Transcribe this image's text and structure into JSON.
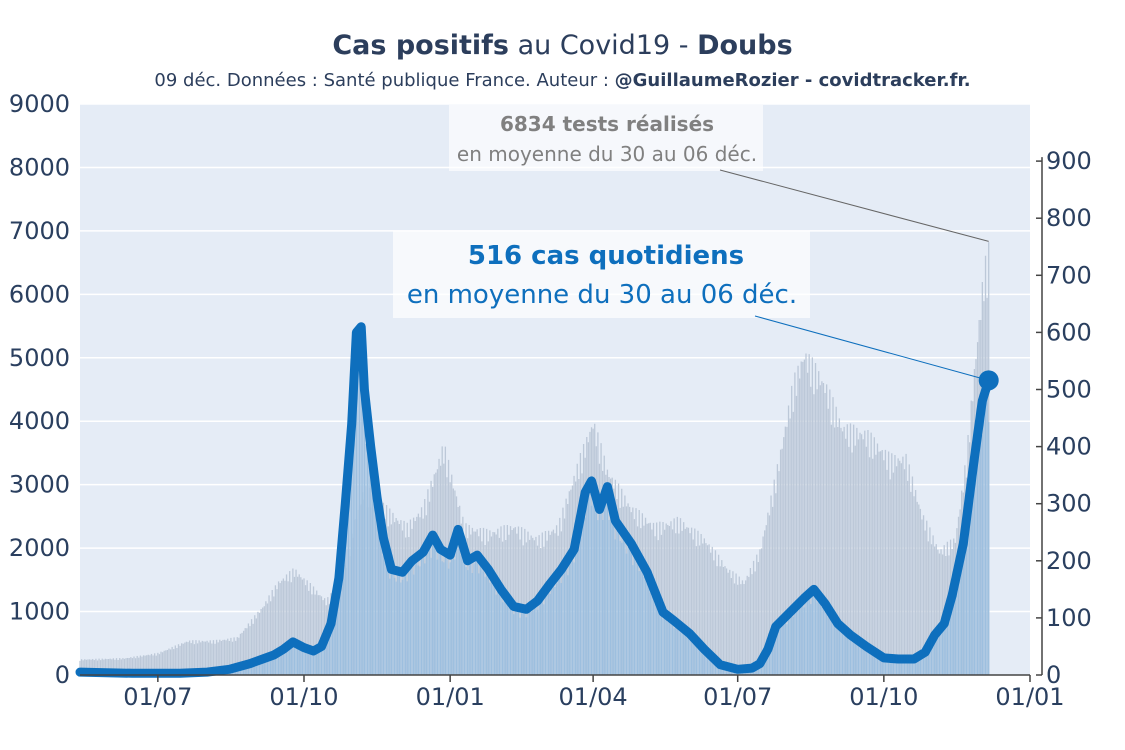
{
  "title": {
    "part1": "Cas positifs",
    "part2": " au Covid19 - ",
    "part3": "Doubs"
  },
  "subtitle": {
    "plain": "09 déc. Données : Santé publique France. Auteur : ",
    "bold": "@GuillaumeRozier - covidtracker.fr."
  },
  "colors": {
    "cases": "#0e6fbd",
    "cases_bars": "#9dbfdf",
    "tests_bars": "#bcc8d8",
    "plot_bg": "#e5ecf6",
    "grid": "#ffffff",
    "tests_annotation": "#808080"
  },
  "chart_data": {
    "type": "line",
    "x_range": [
      "2020-05-13",
      "2022-01-01"
    ],
    "y_left_range": [
      0,
      9000
    ],
    "y_right_range": [
      0,
      1000
    ],
    "y_left_ticks": [
      0,
      1000,
      2000,
      3000,
      4000,
      5000,
      6000,
      7000,
      8000,
      9000
    ],
    "y_right_ticks": [
      0,
      100,
      200,
      300,
      400,
      500,
      600,
      700,
      800,
      900
    ],
    "x_ticks": [
      {
        "date": "2020-07-01",
        "label": "01/07"
      },
      {
        "date": "2020-10-01",
        "label": "01/10"
      },
      {
        "date": "2021-01-01",
        "label": "01/01"
      },
      {
        "date": "2021-04-01",
        "label": "01/04"
      },
      {
        "date": "2021-07-01",
        "label": "01/07"
      },
      {
        "date": "2021-10-01",
        "label": "01/10"
      },
      {
        "date": "2022-01-01",
        "label": "01/01"
      }
    ],
    "grid": true,
    "series": [
      {
        "name": "tests",
        "axis": "left",
        "style": "bars",
        "points": [
          [
            "2020-05-13",
            250
          ],
          [
            "2020-06-10",
            270
          ],
          [
            "2020-07-01",
            350
          ],
          [
            "2020-07-20",
            550
          ],
          [
            "2020-08-05",
            550
          ],
          [
            "2020-08-20",
            600
          ],
          [
            "2020-09-05",
            1100
          ],
          [
            "2020-09-15",
            1500
          ],
          [
            "2020-09-25",
            1700
          ],
          [
            "2020-10-05",
            1450
          ],
          [
            "2020-10-15",
            1200
          ],
          [
            "2020-10-25",
            1500
          ],
          [
            "2020-11-03",
            2600
          ],
          [
            "2020-11-08",
            3000
          ],
          [
            "2020-11-14",
            2900
          ],
          [
            "2020-11-25",
            2600
          ],
          [
            "2020-12-05",
            2400
          ],
          [
            "2020-12-15",
            2700
          ],
          [
            "2020-12-28",
            3700
          ],
          [
            "2021-01-10",
            2400
          ],
          [
            "2021-01-25",
            2300
          ],
          [
            "2021-02-10",
            2400
          ],
          [
            "2021-02-25",
            2200
          ],
          [
            "2021-03-10",
            2400
          ],
          [
            "2021-03-20",
            3200
          ],
          [
            "2021-04-01",
            4100
          ],
          [
            "2021-04-10",
            3300
          ],
          [
            "2021-04-25",
            2700
          ],
          [
            "2021-05-10",
            2400
          ],
          [
            "2021-05-25",
            2500
          ],
          [
            "2021-06-10",
            2200
          ],
          [
            "2021-06-25",
            1700
          ],
          [
            "2021-07-05",
            1500
          ],
          [
            "2021-07-15",
            2000
          ],
          [
            "2021-07-25",
            3200
          ],
          [
            "2021-08-05",
            4700
          ],
          [
            "2021-08-12",
            5200
          ],
          [
            "2021-08-25",
            4700
          ],
          [
            "2021-09-05",
            4000
          ],
          [
            "2021-09-20",
            3900
          ],
          [
            "2021-10-05",
            3500
          ],
          [
            "2021-10-15",
            3500
          ],
          [
            "2021-10-25",
            2600
          ],
          [
            "2021-11-05",
            2000
          ],
          [
            "2021-11-15",
            2200
          ],
          [
            "2021-11-22",
            3500
          ],
          [
            "2021-11-28",
            5200
          ],
          [
            "2021-12-03",
            6500
          ],
          [
            "2021-12-06",
            6834
          ]
        ]
      },
      {
        "name": "cas",
        "axis": "right",
        "style": "line+bars",
        "points": [
          [
            "2020-05-13",
            5
          ],
          [
            "2020-06-15",
            3
          ],
          [
            "2020-07-15",
            3
          ],
          [
            "2020-08-01",
            5
          ],
          [
            "2020-08-15",
            10
          ],
          [
            "2020-08-28",
            20
          ],
          [
            "2020-09-05",
            28
          ],
          [
            "2020-09-12",
            35
          ],
          [
            "2020-09-18",
            45
          ],
          [
            "2020-09-24",
            58
          ],
          [
            "2020-10-01",
            48
          ],
          [
            "2020-10-07",
            42
          ],
          [
            "2020-10-12",
            50
          ],
          [
            "2020-10-18",
            90
          ],
          [
            "2020-10-23",
            170
          ],
          [
            "2020-10-27",
            300
          ],
          [
            "2020-10-31",
            440
          ],
          [
            "2020-11-03",
            600
          ],
          [
            "2020-11-06",
            610
          ],
          [
            "2020-11-08",
            500
          ],
          [
            "2020-11-12",
            400
          ],
          [
            "2020-11-16",
            310
          ],
          [
            "2020-11-20",
            240
          ],
          [
            "2020-11-25",
            185
          ],
          [
            "2020-12-02",
            180
          ],
          [
            "2020-12-08",
            200
          ],
          [
            "2020-12-15",
            215
          ],
          [
            "2020-12-21",
            245
          ],
          [
            "2020-12-26",
            220
          ],
          [
            "2021-01-01",
            210
          ],
          [
            "2021-01-06",
            255
          ],
          [
            "2021-01-12",
            200
          ],
          [
            "2021-01-18",
            210
          ],
          [
            "2021-01-25",
            185
          ],
          [
            "2021-02-02",
            150
          ],
          [
            "2021-02-10",
            120
          ],
          [
            "2021-02-18",
            115
          ],
          [
            "2021-02-25",
            130
          ],
          [
            "2021-03-05",
            160
          ],
          [
            "2021-03-12",
            185
          ],
          [
            "2021-03-20",
            220
          ],
          [
            "2021-03-27",
            320
          ],
          [
            "2021-03-31",
            340
          ],
          [
            "2021-04-05",
            290
          ],
          [
            "2021-04-10",
            330
          ],
          [
            "2021-04-15",
            270
          ],
          [
            "2021-04-25",
            230
          ],
          [
            "2021-05-05",
            180
          ],
          [
            "2021-05-15",
            110
          ],
          [
            "2021-05-22",
            95
          ],
          [
            "2021-06-01",
            72
          ],
          [
            "2021-06-10",
            45
          ],
          [
            "2021-06-20",
            18
          ],
          [
            "2021-07-01",
            10
          ],
          [
            "2021-07-10",
            12
          ],
          [
            "2021-07-15",
            20
          ],
          [
            "2021-07-20",
            45
          ],
          [
            "2021-07-25",
            85
          ],
          [
            "2021-08-03",
            110
          ],
          [
            "2021-08-12",
            135
          ],
          [
            "2021-08-18",
            150
          ],
          [
            "2021-08-25",
            125
          ],
          [
            "2021-09-02",
            90
          ],
          [
            "2021-09-10",
            70
          ],
          [
            "2021-09-20",
            50
          ],
          [
            "2021-10-01",
            30
          ],
          [
            "2021-10-10",
            28
          ],
          [
            "2021-10-20",
            28
          ],
          [
            "2021-10-27",
            40
          ],
          [
            "2021-11-02",
            70
          ],
          [
            "2021-11-08",
            90
          ],
          [
            "2021-11-13",
            140
          ],
          [
            "2021-11-20",
            230
          ],
          [
            "2021-11-27",
            380
          ],
          [
            "2021-12-02",
            480
          ],
          [
            "2021-12-06",
            516
          ]
        ]
      }
    ],
    "annotations": [
      {
        "bold": "6834 tests réalisés",
        "text": "en moyenne du 30 au 06 déc.",
        "series": "tests",
        "date": "2021-12-06",
        "value": 6834
      },
      {
        "bold": "516 cas quotidiens",
        "text": "en moyenne du 30 au 06 déc.",
        "series": "cas",
        "date": "2021-12-06",
        "value": 516
      }
    ]
  }
}
